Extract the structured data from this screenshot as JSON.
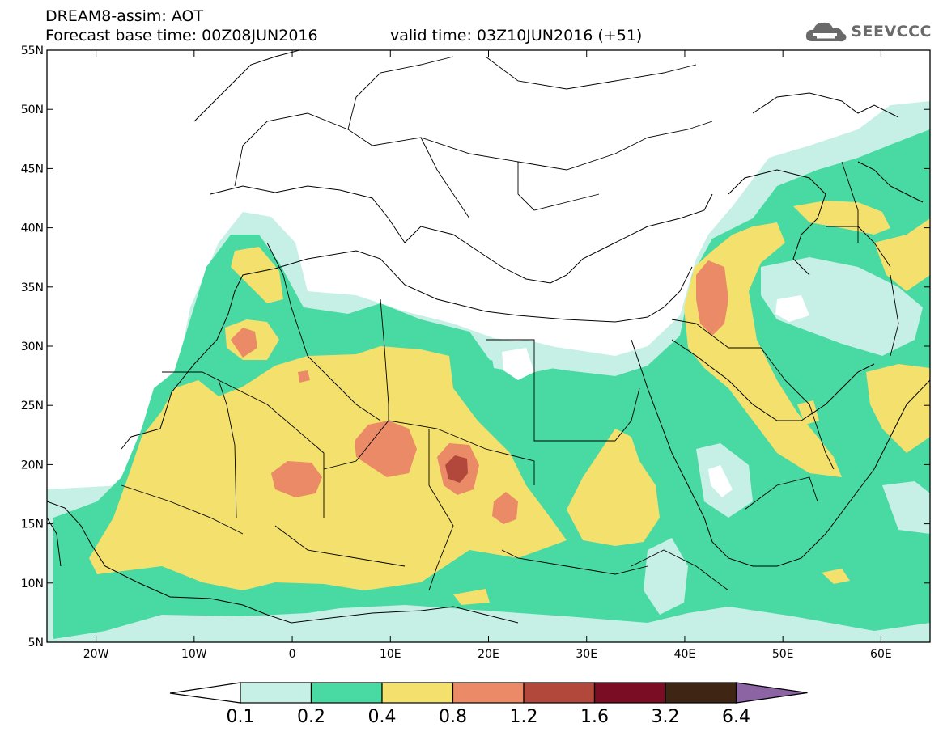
{
  "header": {
    "title": "DREAM8-assim: AOT",
    "forecast_base": "Forecast base time: 00Z08JUN2016",
    "valid": "valid time: 03Z10JUN2016 (+51)",
    "logo_text": "SEEVCCC"
  },
  "map": {
    "lon_range": [
      -25,
      65
    ],
    "lat_range": [
      5,
      55
    ],
    "lat_ticks": [
      "5N",
      "10N",
      "15N",
      "20N",
      "25N",
      "30N",
      "35N",
      "40N",
      "45N",
      "50N",
      "55N"
    ],
    "lon_ticks": [
      "20W",
      "10W",
      "0",
      "10E",
      "20E",
      "30E",
      "40E",
      "50E",
      "60E"
    ]
  },
  "colorbar": {
    "labels": [
      "0.1",
      "0.2",
      "0.4",
      "0.8",
      "1.2",
      "1.6",
      "3.2",
      "6.4"
    ],
    "colors": [
      "#c6f0e6",
      "#49d9a3",
      "#f3e06d",
      "#ea8a67",
      "#b2473c",
      "#7a0c24",
      "#3f2614",
      "#8c64a4"
    ]
  },
  "colors": {
    "c1": "#c6f0e6",
    "c2": "#49d9a3",
    "c3": "#f3e06d",
    "c4": "#ea8a67",
    "c5": "#b2473c"
  }
}
